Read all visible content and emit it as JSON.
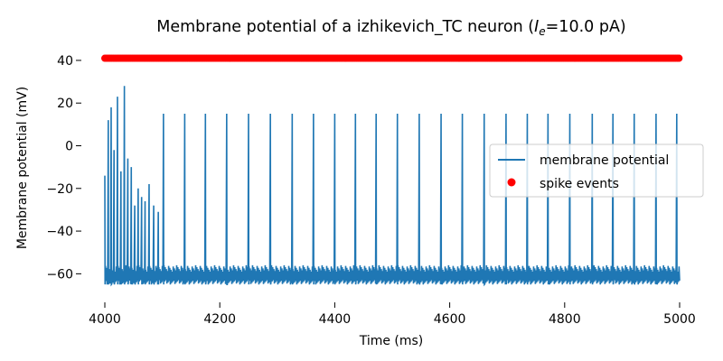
{
  "chart_data": {
    "type": "line",
    "title_prefix": "Membrane potential of a izhikevich_TC neuron (",
    "title_symbol": "I",
    "title_subscript": "e",
    "title_suffix": "=10.0 pA)",
    "xlabel": "Time (ms)",
    "ylabel": "Membrane potential (mV)",
    "xlim": [
      4000,
      5000
    ],
    "ylim": [
      -70,
      48
    ],
    "xticks": [
      4000,
      4200,
      4400,
      4600,
      4800,
      5000
    ],
    "yticks": [
      -60,
      -40,
      -20,
      0,
      20,
      40
    ],
    "xtick_labels": [
      "4000",
      "4200",
      "4400",
      "4600",
      "4800",
      "5000"
    ],
    "ytick_labels": [
      "−60",
      "−40",
      "−20",
      "0",
      "20",
      "40"
    ],
    "grid": false,
    "legend_position": "center-right",
    "series": [
      {
        "name": "membrane potential",
        "kind": "line",
        "color": "#1f77b4",
        "description_of_shape": "bursting tonic spikes",
        "initial_burst": [
          [
            4000,
            -14
          ],
          [
            4006,
            12
          ],
          [
            4011,
            18
          ],
          [
            4016,
            -2
          ],
          [
            4022,
            23
          ],
          [
            4028,
            -12
          ],
          [
            4034,
            28
          ],
          [
            4040,
            -6
          ],
          [
            4046,
            -10
          ],
          [
            4052,
            -28
          ],
          [
            4058,
            -20
          ],
          [
            4064,
            -24
          ],
          [
            4070,
            -26
          ],
          [
            4077,
            -18
          ],
          [
            4085,
            -28
          ],
          [
            4093,
            -31
          ]
        ],
        "regular_spike_times": [
          4102,
          4139,
          4175,
          4212,
          4250,
          4288,
          4326,
          4363,
          4400,
          4436,
          4472,
          4509,
          4547,
          4585,
          4622,
          4660,
          4698,
          4735,
          4771,
          4809,
          4848,
          4884,
          4921,
          4959,
          4995
        ],
        "regular_spike_peak": 15,
        "rest_min": -65,
        "rest_max": -56
      },
      {
        "name": "spike events",
        "kind": "scatter",
        "color": "#ff0000",
        "y_value": 41,
        "x_range": [
          4000,
          5000
        ]
      }
    ]
  }
}
